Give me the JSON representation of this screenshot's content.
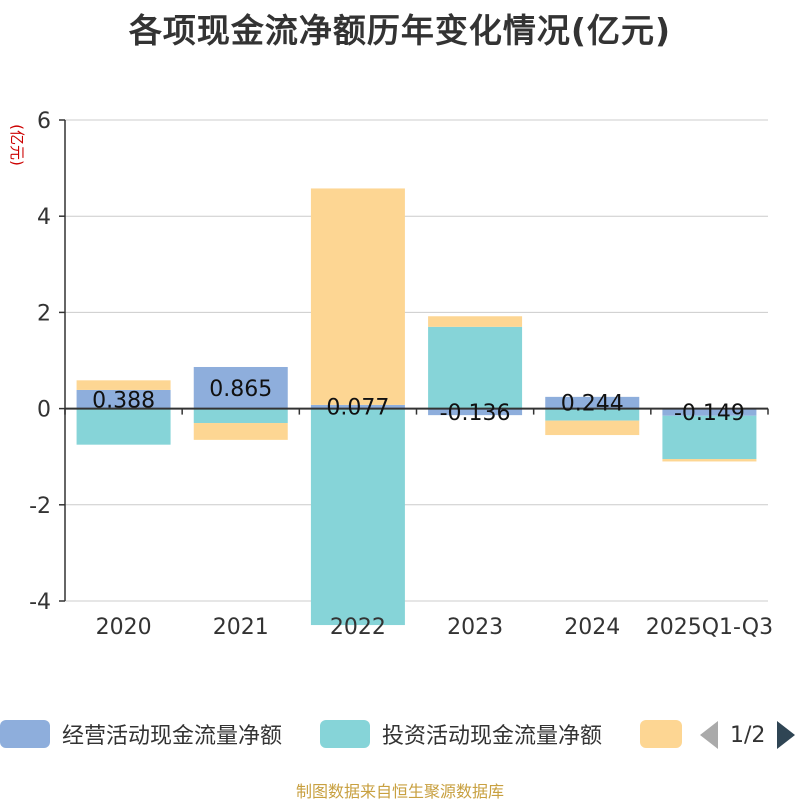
{
  "title": "各项现金流净额历年变化情况(亿元)",
  "footer": "制图数据来自恒生聚源数据库",
  "legend": {
    "items": [
      {
        "label": "经营活动现金流量净额",
        "color": "#8eaedc"
      },
      {
        "label": "投资活动现金流量净额",
        "color": "#86d4d8"
      },
      {
        "label": "",
        "color": "#fdd693"
      }
    ],
    "page": "1/2"
  },
  "chart_data": {
    "type": "bar",
    "stacked": true,
    "ylabel": "(亿元)",
    "ylim": [
      -4,
      6
    ],
    "yticks": [
      -4,
      -2,
      0,
      2,
      4,
      6
    ],
    "categories": [
      "2020",
      "2021",
      "2022",
      "2023",
      "2024",
      "2025Q1-Q3"
    ],
    "series": [
      {
        "name": "经营活动现金流量净额",
        "color": "#8eaedc",
        "values": [
          0.388,
          0.865,
          0.077,
          -0.136,
          0.244,
          -0.149
        ],
        "labels": [
          "0.388",
          "0.865",
          "0.077",
          "-0.136",
          "0.244",
          "-0.149"
        ]
      },
      {
        "name": "投资活动现金流量净额",
        "color": "#86d4d8",
        "values": [
          -0.75,
          -0.3,
          -4.5,
          1.7,
          -0.25,
          -0.9
        ]
      },
      {
        "name": "",
        "color": "#fdd693",
        "values": [
          0.2,
          -0.35,
          4.5,
          0.22,
          -0.3,
          -0.05
        ]
      }
    ]
  }
}
